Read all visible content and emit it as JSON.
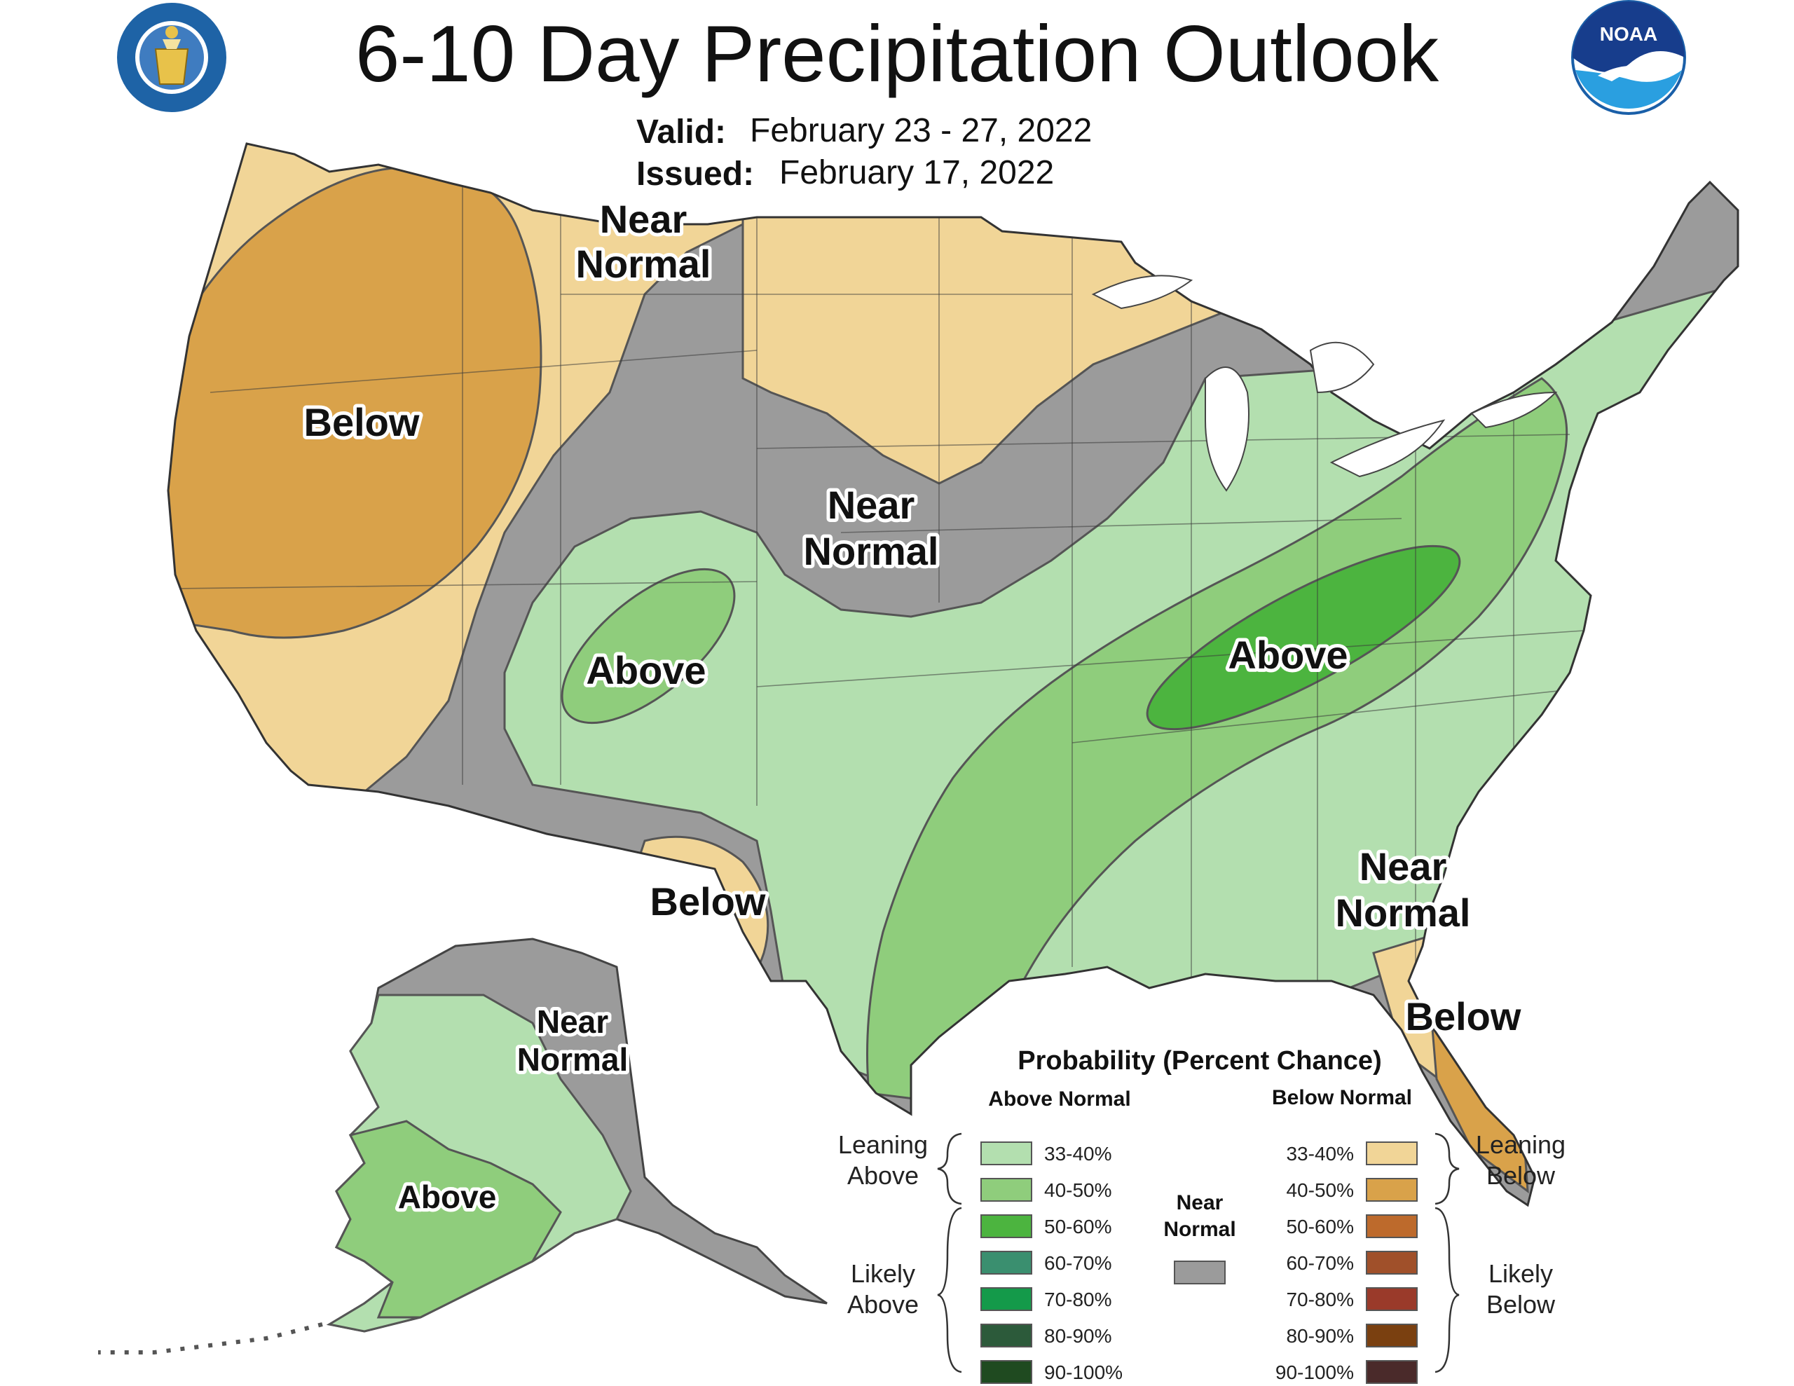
{
  "title": "6-10 Day Precipitation Outlook",
  "valid_label": "Valid:",
  "valid_value": "February 23 - 27, 2022",
  "issued_label": "Issued:",
  "issued_value": "February 17, 2022",
  "logos": {
    "left": "department-of-commerce-seal",
    "right": "noaa-logo",
    "right_text": "NOAA"
  },
  "regions": {
    "near_normal_north": [
      "Near",
      "Normal"
    ],
    "below_west": "Below",
    "near_normal_plains": [
      "Near",
      "Normal"
    ],
    "above_rockies": "Above",
    "above_ohio_valley": "Above",
    "below_texas": "Below",
    "near_normal_southeast": [
      "Near",
      "Normal"
    ],
    "below_florida": "Below",
    "near_normal_alaska": [
      "Near",
      "Normal"
    ],
    "above_alaska": "Above"
  },
  "legend": {
    "title": "Probability (Percent Chance)",
    "above_header": "Above Normal",
    "below_header": "Below Normal",
    "near_label": [
      "Near",
      "Normal"
    ],
    "leaning_above": [
      "Leaning",
      "Above"
    ],
    "likely_above": [
      "Likely",
      "Above"
    ],
    "leaning_below": [
      "Leaning",
      "Below"
    ],
    "likely_below": [
      "Likely",
      "Below"
    ],
    "above_ranges": [
      "33-40%",
      "40-50%",
      "50-60%",
      "60-70%",
      "70-80%",
      "80-90%",
      "90-100%"
    ],
    "below_ranges": [
      "33-40%",
      "40-50%",
      "50-60%",
      "60-70%",
      "70-80%",
      "80-90%",
      "90-100%"
    ]
  },
  "colors": {
    "above": [
      "#b3dfaf",
      "#8fcd7c",
      "#4cb43f",
      "#3a8f6f",
      "#149a4a",
      "#2c5a3a",
      "#1f4a20"
    ],
    "below": [
      "#f1d597",
      "#d9a24a",
      "#bd6a2c",
      "#a0502a",
      "#9a3a2a",
      "#7a4010",
      "#4a2a2a"
    ],
    "near": "#9b9b9b"
  }
}
